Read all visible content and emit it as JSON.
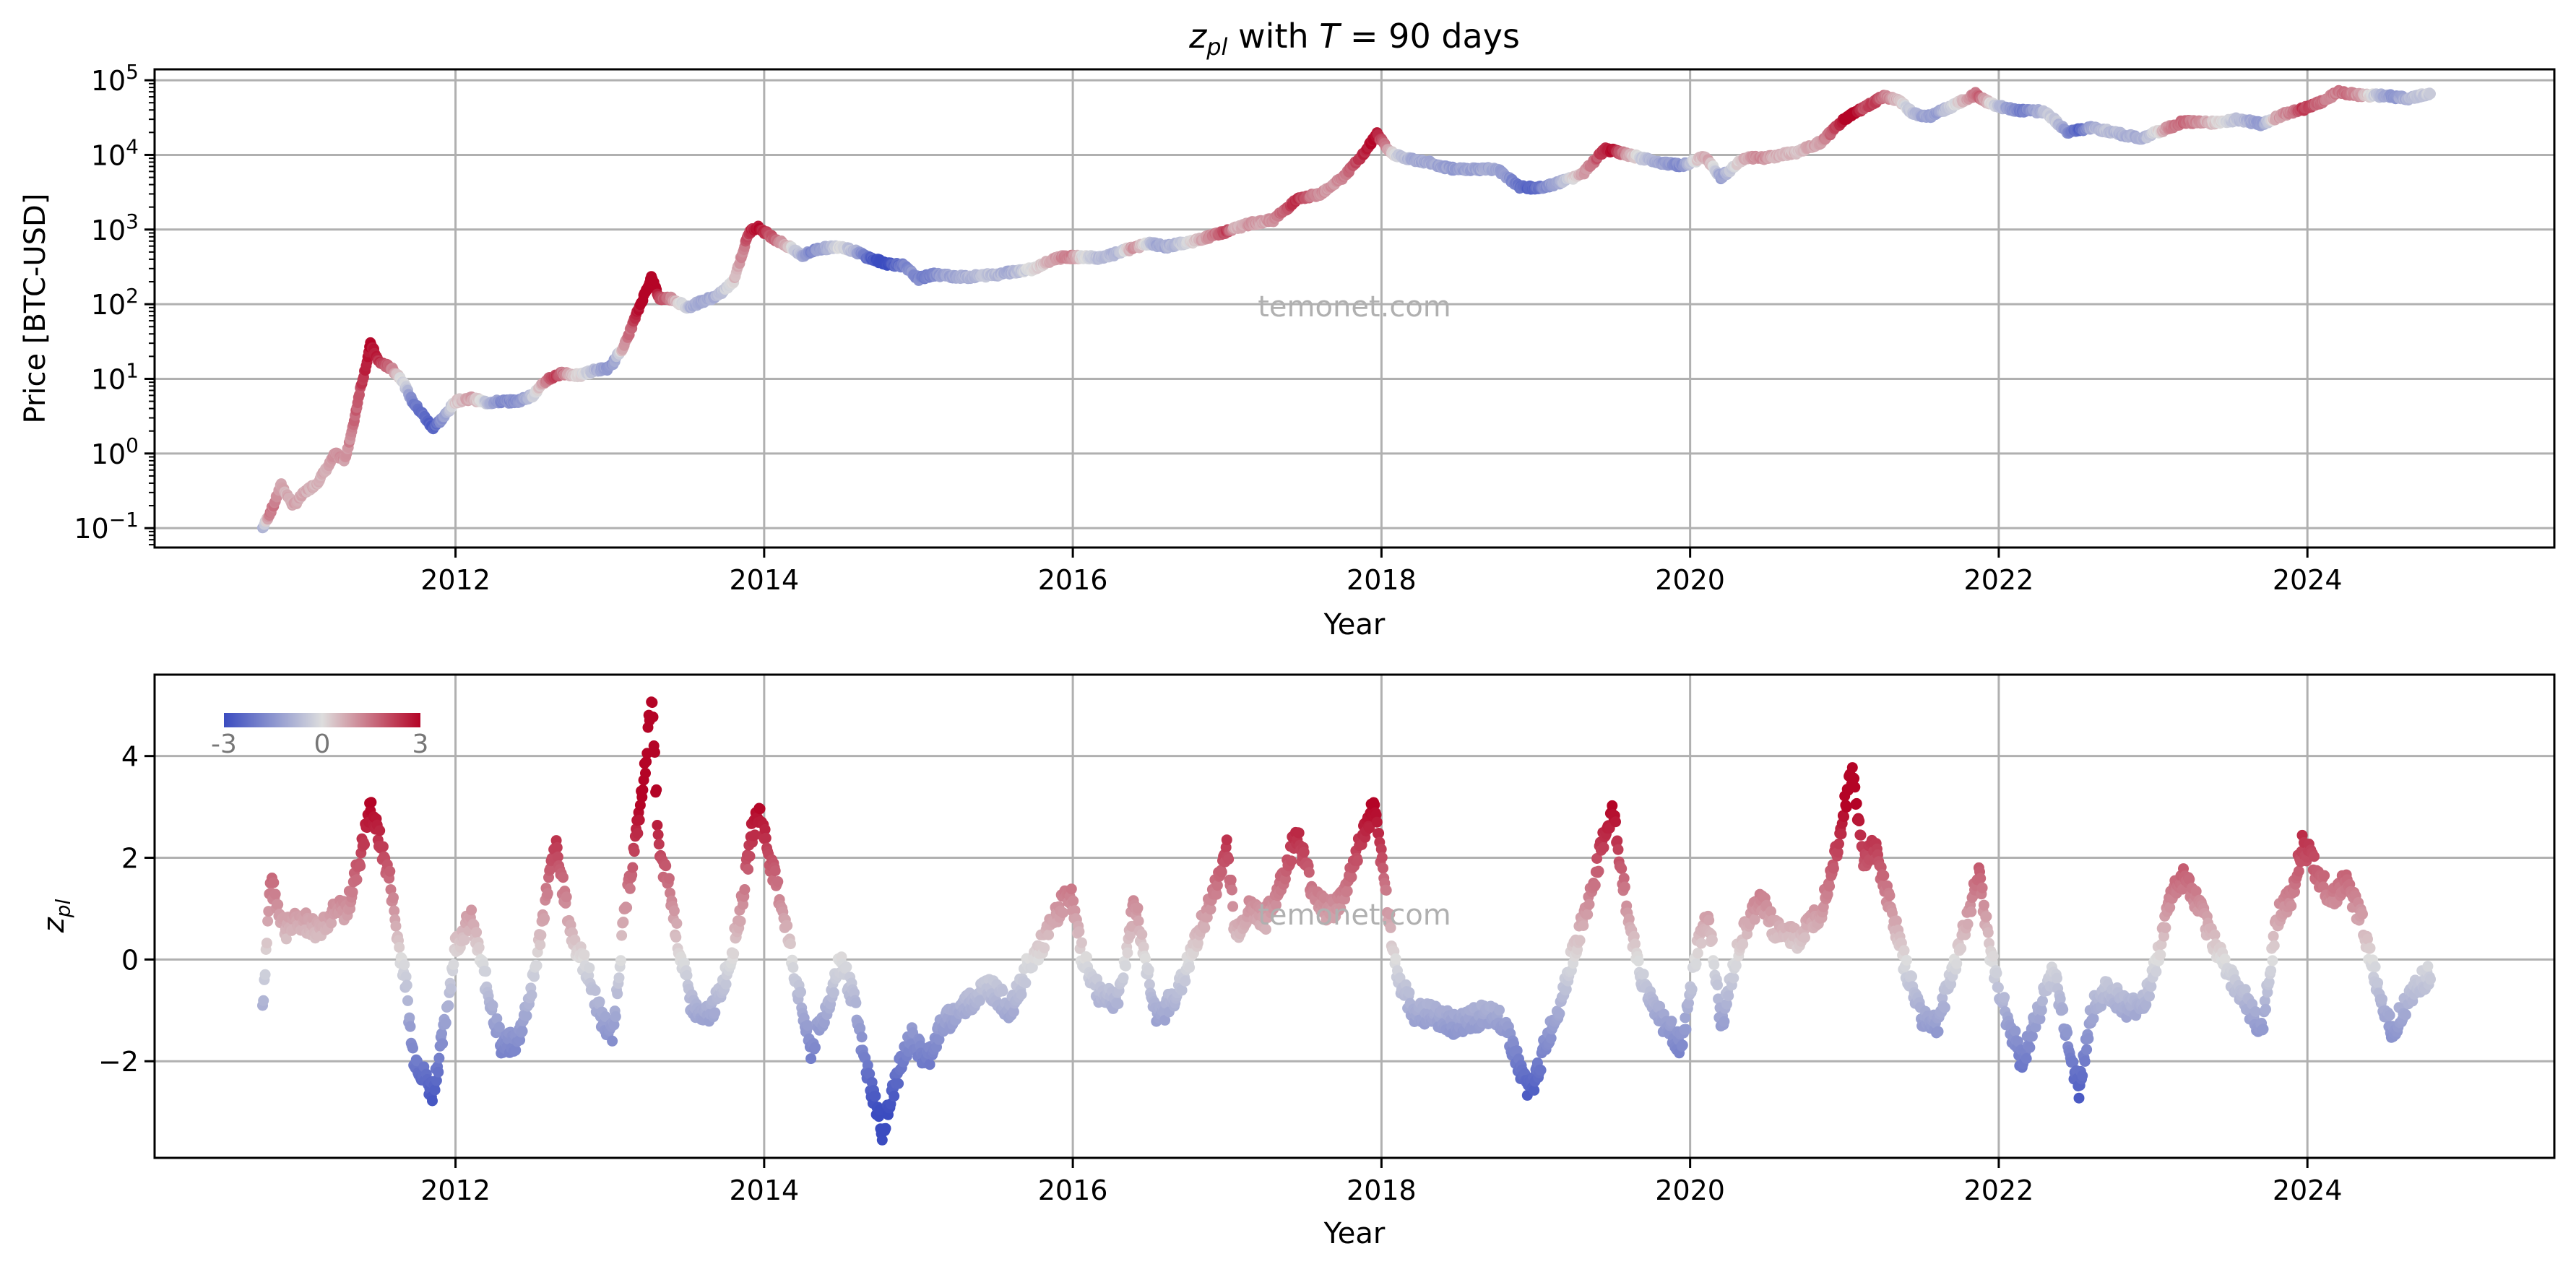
{
  "figure": {
    "title_var": "z",
    "title_sub": "pl",
    "title_rest": " with ",
    "title_T": "T",
    "title_eq": " = 90 days",
    "watermark": "temonet.com"
  },
  "colors": {
    "cold": "#3b4cc0",
    "neutral": "#dddddd",
    "hot": "#b40426",
    "grid": "#b0b0b0"
  },
  "chart_data": [
    {
      "type": "scatter",
      "panel": "price",
      "xlabel": "Year",
      "ylabel": "Price [BTC-USD]",
      "yscale": "log",
      "xlim": [
        2010.05,
        2025.6
      ],
      "ylim": [
        0.055,
        140000
      ],
      "x_ticks": [
        2012,
        2014,
        2016,
        2018,
        2020,
        2022,
        2024
      ],
      "x_tick_labels": [
        "2012",
        "2014",
        "2016",
        "2018",
        "2020",
        "2022",
        "2024"
      ],
      "y_ticks": [
        0.1,
        1,
        10,
        100,
        1000,
        10000,
        100000
      ],
      "y_tick_labels": [
        {
          "base": "10",
          "exp": "−1"
        },
        {
          "base": "10",
          "exp": "0"
        },
        {
          "base": "10",
          "exp": "1"
        },
        {
          "base": "10",
          "exp": "2"
        },
        {
          "base": "10",
          "exp": "3"
        },
        {
          "base": "10",
          "exp": "4"
        },
        {
          "base": "10",
          "exp": "5"
        }
      ],
      "grid": true,
      "color_by": "z_pl",
      "points": [
        [
          2010.75,
          0.1
        ],
        [
          2010.82,
          0.2
        ],
        [
          2010.87,
          0.38
        ],
        [
          2010.95,
          0.2
        ],
        [
          2011.02,
          0.3
        ],
        [
          2011.1,
          0.4
        ],
        [
          2011.18,
          0.7
        ],
        [
          2011.22,
          1.0
        ],
        [
          2011.28,
          0.8
        ],
        [
          2011.33,
          2.0
        ],
        [
          2011.38,
          7.0
        ],
        [
          2011.42,
          15.0
        ],
        [
          2011.45,
          30.0
        ],
        [
          2011.5,
          17.0
        ],
        [
          2011.58,
          14.0
        ],
        [
          2011.65,
          10.0
        ],
        [
          2011.72,
          5.0
        ],
        [
          2011.78,
          3.5
        ],
        [
          2011.85,
          2.2
        ],
        [
          2011.92,
          3.0
        ],
        [
          2012.0,
          5.0
        ],
        [
          2012.1,
          5.5
        ],
        [
          2012.2,
          4.8
        ],
        [
          2012.3,
          5.0
        ],
        [
          2012.4,
          5.0
        ],
        [
          2012.5,
          6.0
        ],
        [
          2012.6,
          10.0
        ],
        [
          2012.7,
          12.0
        ],
        [
          2012.8,
          11.0
        ],
        [
          2012.9,
          13.0
        ],
        [
          2013.0,
          14.0
        ],
        [
          2013.1,
          30.0
        ],
        [
          2013.18,
          80.0
        ],
        [
          2013.27,
          230.0
        ],
        [
          2013.32,
          120.0
        ],
        [
          2013.4,
          120.0
        ],
        [
          2013.5,
          90.0
        ],
        [
          2013.6,
          110.0
        ],
        [
          2013.7,
          130.0
        ],
        [
          2013.8,
          200.0
        ],
        [
          2013.9,
          900.0
        ],
        [
          2013.95,
          1100.0
        ],
        [
          2014.05,
          800.0
        ],
        [
          2014.15,
          600.0
        ],
        [
          2014.25,
          450.0
        ],
        [
          2014.35,
          550.0
        ],
        [
          2014.5,
          600.0
        ],
        [
          2014.6,
          500.0
        ],
        [
          2014.7,
          400.0
        ],
        [
          2014.8,
          350.0
        ],
        [
          2014.9,
          330.0
        ],
        [
          2015.0,
          220.0
        ],
        [
          2015.1,
          250.0
        ],
        [
          2015.3,
          230.0
        ],
        [
          2015.5,
          250.0
        ],
        [
          2015.6,
          270.0
        ],
        [
          2015.75,
          300.0
        ],
        [
          2015.9,
          420.0
        ],
        [
          2016.0,
          430.0
        ],
        [
          2016.2,
          420.0
        ],
        [
          2016.4,
          580.0
        ],
        [
          2016.5,
          650.0
        ],
        [
          2016.6,
          590.0
        ],
        [
          2016.8,
          710.0
        ],
        [
          2017.0,
          950.0
        ],
        [
          2017.15,
          1200.0
        ],
        [
          2017.3,
          1350.0
        ],
        [
          2017.45,
          2500.0
        ],
        [
          2017.6,
          3000.0
        ],
        [
          2017.75,
          5000.0
        ],
        [
          2017.88,
          10000.0
        ],
        [
          2017.97,
          19000.0
        ],
        [
          2018.05,
          11000.0
        ],
        [
          2018.15,
          9000.0
        ],
        [
          2018.3,
          8000.0
        ],
        [
          2018.45,
          6500.0
        ],
        [
          2018.6,
          6500.0
        ],
        [
          2018.75,
          6400.0
        ],
        [
          2018.9,
          3700.0
        ],
        [
          2019.0,
          3600.0
        ],
        [
          2019.1,
          3900.0
        ],
        [
          2019.3,
          5500.0
        ],
        [
          2019.45,
          12000.0
        ],
        [
          2019.6,
          10000.0
        ],
        [
          2019.8,
          8000.0
        ],
        [
          2019.95,
          7200.0
        ],
        [
          2020.1,
          9500.0
        ],
        [
          2020.2,
          5000.0
        ],
        [
          2020.35,
          9000.0
        ],
        [
          2020.5,
          9200.0
        ],
        [
          2020.7,
          11000.0
        ],
        [
          2020.85,
          15000.0
        ],
        [
          2021.0,
          30000.0
        ],
        [
          2021.1,
          40000.0
        ],
        [
          2021.25,
          60000.0
        ],
        [
          2021.35,
          55000.0
        ],
        [
          2021.45,
          35000.0
        ],
        [
          2021.55,
          33000.0
        ],
        [
          2021.7,
          45000.0
        ],
        [
          2021.85,
          65000.0
        ],
        [
          2021.95,
          48000.0
        ],
        [
          2022.1,
          40000.0
        ],
        [
          2022.3,
          38000.0
        ],
        [
          2022.45,
          20000.0
        ],
        [
          2022.6,
          23000.0
        ],
        [
          2022.75,
          20000.0
        ],
        [
          2022.92,
          16500.0
        ],
        [
          2023.05,
          21000.0
        ],
        [
          2023.2,
          28000.0
        ],
        [
          2023.4,
          27000.0
        ],
        [
          2023.55,
          30000.0
        ],
        [
          2023.7,
          26000.0
        ],
        [
          2023.85,
          35000.0
        ],
        [
          2024.0,
          43000.0
        ],
        [
          2024.1,
          52000.0
        ],
        [
          2024.2,
          70000.0
        ],
        [
          2024.35,
          63000.0
        ],
        [
          2024.5,
          62000.0
        ],
        [
          2024.65,
          57000.0
        ],
        [
          2024.8,
          67000.0
        ]
      ]
    },
    {
      "type": "scatter",
      "panel": "z_pl",
      "xlabel": "Year",
      "ylabel_var": "z",
      "ylabel_sub": "pl",
      "yscale": "linear",
      "xlim": [
        2010.05,
        2025.6
      ],
      "ylim": [
        -3.9,
        5.6
      ],
      "x_ticks": [
        2012,
        2014,
        2016,
        2018,
        2020,
        2022,
        2024
      ],
      "x_tick_labels": [
        "2012",
        "2014",
        "2016",
        "2018",
        "2020",
        "2022",
        "2024"
      ],
      "y_ticks": [
        -2,
        0,
        2,
        4
      ],
      "y_tick_labels": [
        "−2",
        "0",
        "2",
        "4"
      ],
      "grid": true,
      "colorbar": {
        "min": -3,
        "max": 3,
        "labels": [
          "-3",
          "0",
          "3"
        ],
        "placement": "top-left"
      },
      "points": [
        [
          2010.75,
          -0.9
        ],
        [
          2010.8,
          1.5
        ],
        [
          2010.9,
          0.6
        ],
        [
          2011.0,
          0.8
        ],
        [
          2011.1,
          0.6
        ],
        [
          2011.2,
          0.9
        ],
        [
          2011.3,
          1.0
        ],
        [
          2011.38,
          2.0
        ],
        [
          2011.45,
          3.0
        ],
        [
          2011.52,
          2.2
        ],
        [
          2011.58,
          1.5
        ],
        [
          2011.62,
          0.5
        ],
        [
          2011.68,
          -0.5
        ],
        [
          2011.72,
          -1.8
        ],
        [
          2011.78,
          -2.2
        ],
        [
          2011.85,
          -2.6
        ],
        [
          2011.92,
          -1.5
        ],
        [
          2012.0,
          0.3
        ],
        [
          2012.1,
          0.8
        ],
        [
          2012.2,
          -0.5
        ],
        [
          2012.3,
          -1.7
        ],
        [
          2012.4,
          -1.6
        ],
        [
          2012.5,
          -0.5
        ],
        [
          2012.6,
          1.5
        ],
        [
          2012.65,
          2.2
        ],
        [
          2012.75,
          0.5
        ],
        [
          2012.85,
          -0.2
        ],
        [
          2012.95,
          -1.2
        ],
        [
          2013.02,
          -1.5
        ],
        [
          2013.08,
          0.5
        ],
        [
          2013.15,
          2.0
        ],
        [
          2013.22,
          3.5
        ],
        [
          2013.27,
          5.2
        ],
        [
          2013.32,
          2.0
        ],
        [
          2013.38,
          1.5
        ],
        [
          2013.45,
          0.2
        ],
        [
          2013.52,
          -0.8
        ],
        [
          2013.6,
          -1.2
        ],
        [
          2013.7,
          -0.8
        ],
        [
          2013.78,
          0.0
        ],
        [
          2013.85,
          1.0
        ],
        [
          2013.92,
          2.5
        ],
        [
          2013.97,
          2.9
        ],
        [
          2014.05,
          1.8
        ],
        [
          2014.12,
          1.0
        ],
        [
          2014.2,
          -0.3
        ],
        [
          2014.3,
          -1.8
        ],
        [
          2014.4,
          -1.0
        ],
        [
          2014.5,
          0.0
        ],
        [
          2014.58,
          -0.8
        ],
        [
          2014.65,
          -2.0
        ],
        [
          2014.72,
          -2.8
        ],
        [
          2014.77,
          -3.4
        ],
        [
          2014.85,
          -2.4
        ],
        [
          2014.95,
          -1.5
        ],
        [
          2015.05,
          -2.0
        ],
        [
          2015.15,
          -1.3
        ],
        [
          2015.3,
          -0.9
        ],
        [
          2015.45,
          -0.5
        ],
        [
          2015.6,
          -1.0
        ],
        [
          2015.7,
          -0.2
        ],
        [
          2015.8,
          0.3
        ],
        [
          2015.9,
          0.9
        ],
        [
          2015.98,
          1.4
        ],
        [
          2016.05,
          0.2
        ],
        [
          2016.15,
          -0.6
        ],
        [
          2016.3,
          -0.8
        ],
        [
          2016.4,
          1.2
        ],
        [
          2016.45,
          0.3
        ],
        [
          2016.55,
          -1.2
        ],
        [
          2016.7,
          -0.5
        ],
        [
          2016.85,
          0.8
        ],
        [
          2016.95,
          1.6
        ],
        [
          2017.0,
          2.3
        ],
        [
          2017.05,
          0.5
        ],
        [
          2017.15,
          1.0
        ],
        [
          2017.25,
          0.8
        ],
        [
          2017.35,
          1.5
        ],
        [
          2017.45,
          2.5
        ],
        [
          2017.55,
          1.4
        ],
        [
          2017.65,
          0.9
        ],
        [
          2017.75,
          1.2
        ],
        [
          2017.85,
          2.2
        ],
        [
          2017.95,
          3.0
        ],
        [
          2018.02,
          1.5
        ],
        [
          2018.1,
          -0.3
        ],
        [
          2018.2,
          -1.0
        ],
        [
          2018.35,
          -1.1
        ],
        [
          2018.5,
          -1.3
        ],
        [
          2018.65,
          -1.1
        ],
        [
          2018.8,
          -1.2
        ],
        [
          2018.9,
          -2.2
        ],
        [
          2018.97,
          -2.6
        ],
        [
          2019.05,
          -1.8
        ],
        [
          2019.15,
          -0.9
        ],
        [
          2019.25,
          0.2
        ],
        [
          2019.35,
          1.2
        ],
        [
          2019.45,
          2.5
        ],
        [
          2019.5,
          2.9
        ],
        [
          2019.6,
          0.8
        ],
        [
          2019.7,
          -0.5
        ],
        [
          2019.82,
          -1.2
        ],
        [
          2019.95,
          -1.7
        ],
        [
          2020.05,
          0.3
        ],
        [
          2020.12,
          0.8
        ],
        [
          2020.2,
          -1.3
        ],
        [
          2020.32,
          0.3
        ],
        [
          2020.45,
          1.2
        ],
        [
          2020.55,
          0.6
        ],
        [
          2020.7,
          0.4
        ],
        [
          2020.85,
          1.0
        ],
        [
          2020.95,
          2.2
        ],
        [
          2021.02,
          3.3
        ],
        [
          2021.05,
          3.7
        ],
        [
          2021.12,
          2.0
        ],
        [
          2021.2,
          2.2
        ],
        [
          2021.3,
          1.0
        ],
        [
          2021.4,
          -0.2
        ],
        [
          2021.5,
          -1.1
        ],
        [
          2021.6,
          -1.3
        ],
        [
          2021.7,
          -0.2
        ],
        [
          2021.8,
          0.8
        ],
        [
          2021.87,
          1.8
        ],
        [
          2021.95,
          0.0
        ],
        [
          2022.05,
          -1.1
        ],
        [
          2022.15,
          -2.0
        ],
        [
          2022.25,
          -1.1
        ],
        [
          2022.35,
          -0.2
        ],
        [
          2022.45,
          -1.6
        ],
        [
          2022.52,
          -2.6
        ],
        [
          2022.6,
          -1.0
        ],
        [
          2022.7,
          -0.6
        ],
        [
          2022.85,
          -1.0
        ],
        [
          2022.95,
          -0.8
        ],
        [
          2023.05,
          0.3
        ],
        [
          2023.12,
          1.3
        ],
        [
          2023.2,
          1.6
        ],
        [
          2023.3,
          1.0
        ],
        [
          2023.4,
          0.3
        ],
        [
          2023.5,
          -0.3
        ],
        [
          2023.6,
          -0.8
        ],
        [
          2023.7,
          -1.5
        ],
        [
          2023.8,
          0.8
        ],
        [
          2023.9,
          1.3
        ],
        [
          2023.97,
          2.3
        ],
        [
          2024.05,
          1.8
        ],
        [
          2024.15,
          1.2
        ],
        [
          2024.25,
          1.5
        ],
        [
          2024.35,
          0.8
        ],
        [
          2024.45,
          -0.5
        ],
        [
          2024.55,
          -1.4
        ],
        [
          2024.65,
          -0.8
        ],
        [
          2024.75,
          -0.4
        ],
        [
          2024.82,
          -0.3
        ]
      ]
    }
  ]
}
